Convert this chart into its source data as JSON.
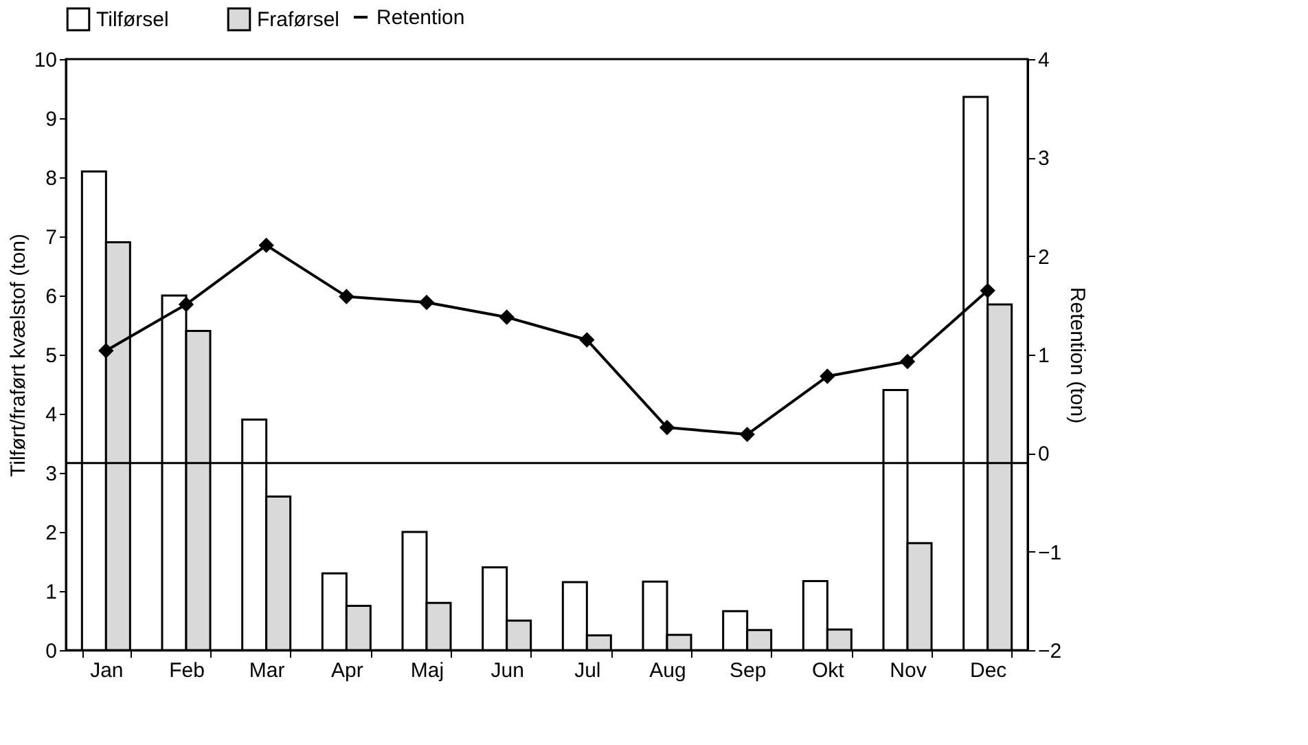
{
  "chart_data": {
    "type": "bar",
    "ylabel": "Tilført/fraført kvælstof (ton)",
    "y2label": "Retention (ton)",
    "categories": [
      "Jan",
      "Feb",
      "Mar",
      "Apr",
      "Maj",
      "Jun",
      "Jul",
      "Aug",
      "Sep",
      "Okt",
      "Nov",
      "Dec"
    ],
    "series": [
      {
        "name": "Tilførsel",
        "color": "#ffffff",
        "values": [
          8.1,
          6.0,
          3.9,
          1.3,
          2.0,
          1.4,
          1.15,
          1.16,
          0.66,
          1.17,
          4.4,
          9.36
        ]
      },
      {
        "name": "Fraførsel",
        "color": "#d9d9d9",
        "values": [
          6.9,
          5.4,
          2.6,
          0.75,
          0.8,
          0.5,
          0.25,
          0.26,
          0.34,
          0.35,
          1.81,
          5.85
        ]
      },
      {
        "name": "Retention",
        "type": "line",
        "axis": "y2",
        "color": "#000000",
        "marker": "diamond",
        "line_style": "solid",
        "values": [
          1.04,
          1.51,
          2.11,
          1.59,
          1.53,
          1.38,
          1.15,
          0.26,
          0.19,
          0.78,
          0.93,
          1.65
        ]
      }
    ],
    "ylim": [
      0,
      10
    ],
    "yticks": [
      0,
      1,
      2,
      3,
      4,
      5,
      6,
      7,
      8,
      9,
      10
    ],
    "y2lim": [
      -2,
      4
    ],
    "y2ticks": [
      -2,
      -1,
      0,
      1,
      2,
      3,
      4
    ],
    "ref_lines": [
      {
        "axis": "y2",
        "value": -0.1,
        "color": "#000000",
        "line_style": "solid"
      }
    ],
    "legend": "top",
    "grid": false
  }
}
